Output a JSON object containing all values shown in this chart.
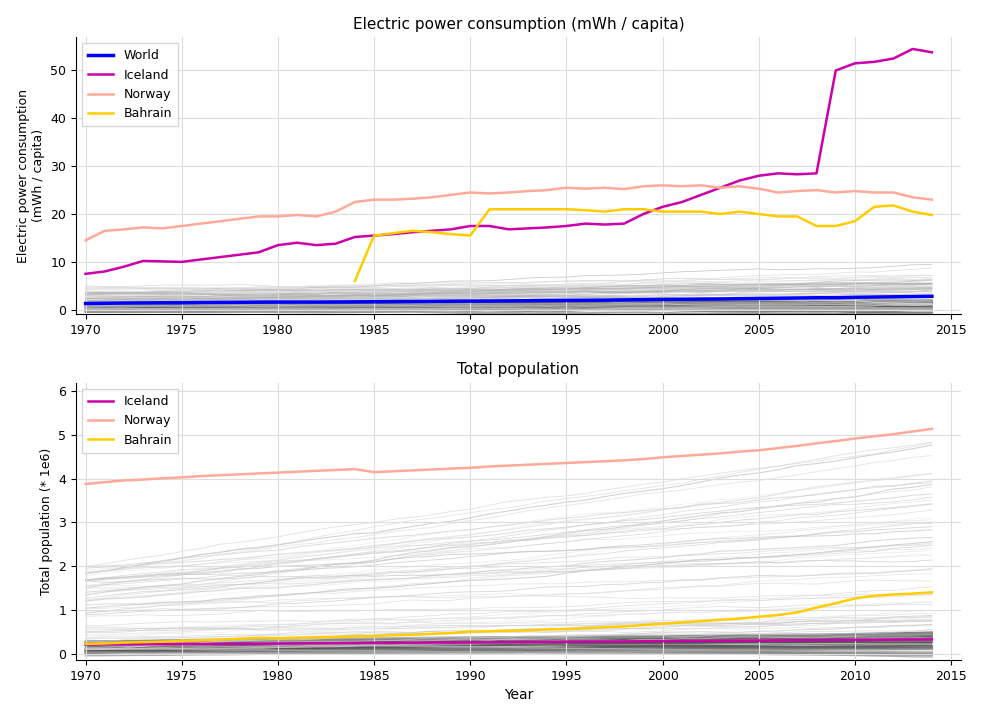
{
  "years": [
    1970,
    1971,
    1972,
    1973,
    1974,
    1975,
    1976,
    1977,
    1978,
    1979,
    1980,
    1981,
    1982,
    1983,
    1984,
    1985,
    1986,
    1987,
    1988,
    1989,
    1990,
    1991,
    1992,
    1993,
    1994,
    1995,
    1996,
    1997,
    1998,
    1999,
    2000,
    2001,
    2002,
    2003,
    2004,
    2005,
    2006,
    2007,
    2008,
    2009,
    2010,
    2011,
    2012,
    2013,
    2014
  ],
  "iceland_elec": [
    7.5,
    8.0,
    9.0,
    10.2,
    10.1,
    10.0,
    10.5,
    11.0,
    11.5,
    12.0,
    13.5,
    14.0,
    13.5,
    13.8,
    15.2,
    15.5,
    15.8,
    16.2,
    16.5,
    16.8,
    17.5,
    17.5,
    16.8,
    17.0,
    17.2,
    17.5,
    18.0,
    17.8,
    18.0,
    20.0,
    21.5,
    22.5,
    24.0,
    25.5,
    27.0,
    28.0,
    28.5,
    28.3,
    28.5,
    50.0,
    51.5,
    51.8,
    52.5,
    54.5,
    53.8
  ],
  "norway_elec": [
    14.5,
    16.5,
    16.8,
    17.2,
    17.0,
    17.5,
    18.0,
    18.5,
    19.0,
    19.5,
    19.5,
    19.8,
    19.5,
    20.5,
    22.5,
    23.0,
    23.0,
    23.2,
    23.5,
    24.0,
    24.5,
    24.3,
    24.5,
    24.8,
    25.0,
    25.5,
    25.3,
    25.5,
    25.2,
    25.8,
    26.0,
    25.8,
    26.0,
    25.5,
    25.8,
    25.3,
    24.5,
    24.8,
    25.0,
    24.5,
    24.8,
    24.5,
    24.5,
    23.5,
    23.0
  ],
  "bahrain_elec": [
    null,
    null,
    null,
    null,
    null,
    null,
    null,
    null,
    null,
    null,
    null,
    null,
    null,
    null,
    6.0,
    15.5,
    16.0,
    16.5,
    16.2,
    15.8,
    15.5,
    21.0,
    21.0,
    21.0,
    21.0,
    21.0,
    20.8,
    20.5,
    21.0,
    21.0,
    20.5,
    20.5,
    20.5,
    20.0,
    20.5,
    20.0,
    19.5,
    19.5,
    17.5,
    17.5,
    18.5,
    21.5,
    21.8,
    20.5,
    19.8
  ],
  "world_elec": [
    1.3,
    1.35,
    1.4,
    1.42,
    1.45,
    1.45,
    1.5,
    1.52,
    1.55,
    1.58,
    1.6,
    1.6,
    1.6,
    1.62,
    1.65,
    1.68,
    1.7,
    1.72,
    1.75,
    1.78,
    1.8,
    1.82,
    1.85,
    1.88,
    1.92,
    1.95,
    1.98,
    2.0,
    2.05,
    2.1,
    2.15,
    2.18,
    2.22,
    2.25,
    2.3,
    2.35,
    2.4,
    2.45,
    2.5,
    2.52,
    2.6,
    2.65,
    2.7,
    2.75,
    2.8
  ],
  "iceland_pop": [
    0.204,
    0.207,
    0.21,
    0.212,
    0.214,
    0.216,
    0.218,
    0.22,
    0.222,
    0.224,
    0.227,
    0.23,
    0.233,
    0.235,
    0.237,
    0.24,
    0.243,
    0.246,
    0.25,
    0.253,
    0.255,
    0.257,
    0.26,
    0.263,
    0.266,
    0.268,
    0.271,
    0.274,
    0.277,
    0.28,
    0.283,
    0.286,
    0.288,
    0.29,
    0.293,
    0.296,
    0.3,
    0.304,
    0.308,
    0.31,
    0.312,
    0.316,
    0.319,
    0.321,
    0.323
  ],
  "norway_pop": [
    3.88,
    3.92,
    3.96,
    3.98,
    4.01,
    4.03,
    4.06,
    4.08,
    4.1,
    4.12,
    4.14,
    4.16,
    4.18,
    4.2,
    4.22,
    4.15,
    4.17,
    4.19,
    4.21,
    4.23,
    4.25,
    4.28,
    4.3,
    4.32,
    4.34,
    4.36,
    4.38,
    4.4,
    4.42,
    4.45,
    4.49,
    4.52,
    4.55,
    4.58,
    4.62,
    4.65,
    4.7,
    4.75,
    4.81,
    4.86,
    4.92,
    4.97,
    5.02,
    5.08,
    5.14
  ],
  "bahrain_pop": [
    0.22,
    0.23,
    0.25,
    0.26,
    0.27,
    0.29,
    0.3,
    0.32,
    0.34,
    0.36,
    0.35,
    0.36,
    0.37,
    0.38,
    0.39,
    0.4,
    0.42,
    0.43,
    0.45,
    0.47,
    0.5,
    0.51,
    0.52,
    0.53,
    0.55,
    0.56,
    0.58,
    0.6,
    0.62,
    0.65,
    0.68,
    0.71,
    0.74,
    0.77,
    0.8,
    0.84,
    0.88,
    0.94,
    1.05,
    1.15,
    1.26,
    1.32,
    1.35,
    1.37,
    1.4
  ],
  "colors": {
    "world": "#0000ff",
    "iceland": "#cc00aa",
    "norway": "#ffaa99",
    "bahrain": "#ffcc00",
    "bg_light": "#dddddd",
    "bg_mid": "#bbbbbb",
    "bg_dark": "#888888",
    "bg_vdark": "#444444"
  },
  "title_elec": "Electric power consumption (mWh / capita)",
  "title_pop": "Total population",
  "ylabel_elec": "Electric power consumption\n(mWh / capita)",
  "ylabel_pop": "Total population (* 1e6)",
  "xlabel": "Year"
}
